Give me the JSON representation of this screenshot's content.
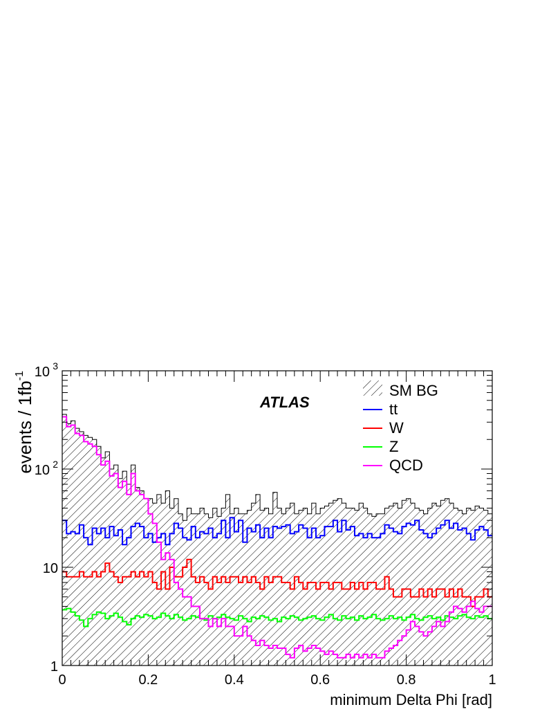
{
  "chart_data": {
    "type": "histogram",
    "xlabel": "minimum Delta Phi [rad]",
    "ylabel": "events / 1fb",
    "ylabel_superscript": "-1",
    "xlim": [
      0,
      1
    ],
    "ylim": [
      1,
      1000
    ],
    "log_y": true,
    "bins": 100,
    "annotation": "ATLAS",
    "legend_position": "top-right",
    "x_ticks": [
      {
        "value": 0,
        "label": "0"
      },
      {
        "value": 0.2,
        "label": "0.2"
      },
      {
        "value": 0.4,
        "label": "0.4"
      },
      {
        "value": 0.6,
        "label": "0.6"
      },
      {
        "value": 0.8,
        "label": "0.8"
      },
      {
        "value": 1,
        "label": "1"
      }
    ],
    "y_ticks": [
      {
        "value": 1,
        "label": "1",
        "exp": ""
      },
      {
        "value": 10,
        "label": "10",
        "exp": ""
      },
      {
        "value": 100,
        "label": "10",
        "exp": "2"
      },
      {
        "value": 1000,
        "label": "10",
        "exp": "3"
      }
    ],
    "series": [
      {
        "name": "SM BG",
        "style": "hatched",
        "color": "#000000",
        "values": [
          360,
          290,
          310,
          260,
          240,
          220,
          210,
          200,
          170,
          130,
          150,
          100,
          110,
          80,
          95,
          70,
          110,
          65,
          60,
          50,
          50,
          45,
          55,
          45,
          60,
          40,
          50,
          35,
          30,
          40,
          35,
          35,
          40,
          35,
          32,
          40,
          33,
          40,
          55,
          35,
          40,
          35,
          35,
          38,
          45,
          55,
          38,
          40,
          35,
          58,
          40,
          35,
          40,
          45,
          35,
          38,
          40,
          35,
          45,
          35,
          40,
          42,
          45,
          48,
          50,
          45,
          40,
          40,
          38,
          45,
          40,
          35,
          33,
          35,
          35,
          40,
          42,
          45,
          40,
          48,
          50,
          45,
          40,
          38,
          35,
          40,
          45,
          42,
          48,
          50,
          45,
          40,
          38,
          35,
          40,
          38,
          42,
          40,
          38,
          35
        ]
      },
      {
        "name": "tt",
        "style": "line",
        "color": "#0000ff",
        "values": [
          30,
          22,
          23,
          22,
          27,
          20,
          17,
          25,
          22,
          25,
          20,
          26,
          21,
          24,
          17,
          20,
          26,
          28,
          26,
          20,
          22,
          18,
          20,
          22,
          17,
          22,
          28,
          25,
          20,
          19,
          26,
          20,
          23,
          22,
          25,
          20,
          22,
          30,
          20,
          32,
          23,
          30,
          18,
          25,
          23,
          27,
          20,
          25,
          20,
          26,
          25,
          26,
          27,
          22,
          23,
          27,
          25,
          20,
          25,
          20,
          21,
          26,
          26,
          30,
          23,
          30,
          24,
          26,
          21,
          22,
          20,
          22,
          20,
          20,
          22,
          27,
          25,
          23,
          22,
          26,
          28,
          27,
          30,
          24,
          22,
          20,
          22,
          25,
          27,
          30,
          25,
          28,
          24,
          25,
          22,
          19,
          24,
          26,
          24,
          21
        ]
      },
      {
        "name": "W",
        "style": "line",
        "color": "#ff0000",
        "values": [
          9,
          8,
          8,
          8,
          9,
          8,
          8,
          9,
          8,
          9,
          11,
          9,
          8,
          7,
          8,
          8,
          9,
          8,
          9,
          8,
          9,
          7,
          6,
          9,
          6,
          10,
          8,
          8,
          10,
          12,
          8,
          7,
          8,
          7,
          6,
          8,
          7,
          8,
          7,
          8,
          8,
          7,
          8,
          7,
          8,
          7,
          6,
          8,
          7,
          8,
          8,
          7,
          7,
          6,
          8,
          7,
          6,
          7,
          7,
          6,
          7,
          7,
          6,
          7,
          7,
          6,
          6,
          7,
          6,
          7,
          6,
          7,
          7,
          6,
          6,
          8,
          6,
          5,
          5,
          6,
          6,
          5,
          5,
          6,
          5,
          6,
          5,
          6,
          6,
          5,
          6,
          5,
          6,
          5,
          5,
          4,
          5,
          5,
          6,
          5
        ]
      },
      {
        "name": "Z",
        "style": "line",
        "color": "#00ff00",
        "values": [
          3.7,
          3.8,
          3.5,
          3.2,
          2.9,
          2.5,
          3.0,
          3.3,
          3.5,
          3.4,
          3.0,
          3.2,
          3.4,
          3.1,
          2.8,
          2.6,
          3.0,
          3.2,
          3.1,
          3.3,
          3.2,
          3.0,
          3.1,
          3.4,
          3.2,
          3.0,
          3.3,
          3.1,
          2.9,
          3.0,
          3.2,
          3.1,
          3.0,
          2.9,
          3.2,
          3.0,
          3.1,
          3.3,
          3.1,
          3.0,
          2.9,
          3.2,
          3.0,
          2.8,
          3.1,
          3.0,
          3.2,
          3.1,
          2.9,
          3.0,
          2.8,
          3.1,
          3.0,
          3.2,
          3.1,
          2.9,
          3.0,
          3.1,
          3.2,
          3.0,
          2.9,
          3.1,
          3.3,
          3.0,
          2.9,
          3.2,
          3.0,
          3.1,
          2.9,
          3.2,
          3.0,
          3.1,
          3.3,
          3.0,
          2.9,
          3.0,
          3.2,
          3.0,
          3.1,
          2.9,
          3.1,
          3.3,
          3.0,
          2.9,
          3.1,
          3.2,
          3.0,
          3.1,
          2.9,
          3.2,
          3.1,
          3.0,
          3.2,
          3.3,
          3.1,
          3.0,
          3.2,
          3.1,
          3.2,
          3.0
        ]
      },
      {
        "name": "QCD",
        "style": "line",
        "color": "#ff00ff",
        "values": [
          340,
          270,
          280,
          230,
          220,
          190,
          180,
          170,
          140,
          110,
          120,
          85,
          90,
          65,
          75,
          55,
          90,
          60,
          55,
          50,
          35,
          28,
          18,
          12,
          14,
          12,
          7,
          6,
          5,
          5,
          4,
          4,
          3,
          3,
          2.5,
          3,
          2.5,
          3,
          2.5,
          2.5,
          2,
          2,
          2.5,
          2,
          1.8,
          1.6,
          1.8,
          1.6,
          1.5,
          1.6,
          1.5,
          1.5,
          1.3,
          1.2,
          1.5,
          1.6,
          1.4,
          1.5,
          1.6,
          1.5,
          1.4,
          1.3,
          1.4,
          1.3,
          1.2,
          1.2,
          1.3,
          1.2,
          1.3,
          1.2,
          1.3,
          1.2,
          1.3,
          1.2,
          1.2,
          1.4,
          1.5,
          1.6,
          1.8,
          2,
          2.3,
          2.8,
          2.5,
          2.2,
          2,
          2.2,
          2.5,
          2.8,
          2.5,
          2.8,
          3.5,
          4,
          3.8,
          3.5,
          4,
          4.5,
          3.8,
          3.5,
          4,
          4
        ]
      }
    ]
  }
}
